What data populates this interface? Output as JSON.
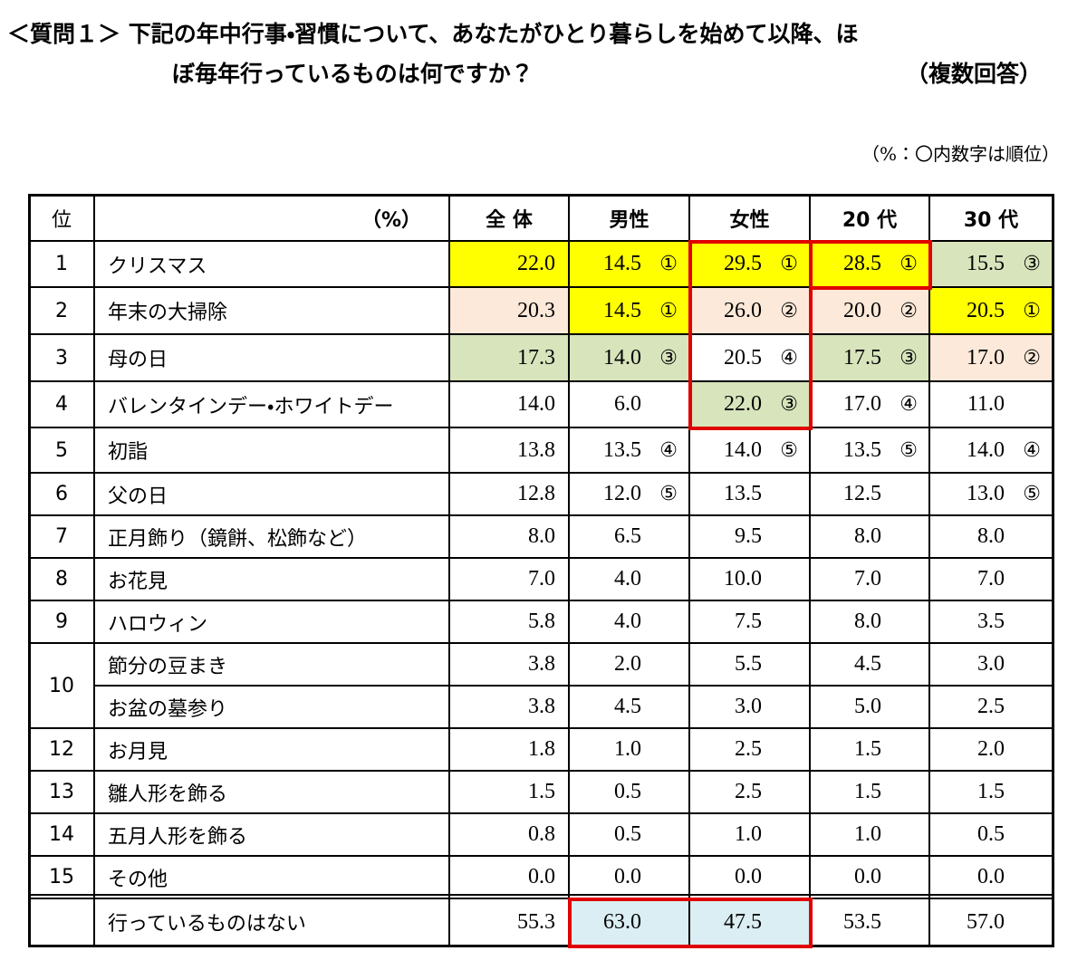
{
  "header": {
    "title_lines": [
      "＜質問１＞ 下記の年中行事・習慣について、あなたがひとり暮らしを始めて以降、ほ",
      "ぼ毎年行っているものは何ですか？"
    ],
    "answer_type": "（複数回答）",
    "note": "（%：〇内数字は順位）"
  },
  "table": {
    "header": {
      "rank": "位",
      "item": "（%）",
      "columns": [
        "全 体",
        "男性",
        "女性",
        "20 代",
        "30 代"
      ]
    },
    "rows": [
      {
        "rank": "1",
        "item": "クリスマス",
        "cells": [
          {
            "value": "22.0"
          },
          {
            "value": "14.5",
            "order": "①"
          },
          {
            "value": "29.5",
            "order": "①"
          },
          {
            "value": "28.5",
            "order": "①"
          },
          {
            "value": "15.5",
            "order": "③"
          }
        ]
      },
      {
        "rank": "2",
        "item": "年末の大掃除",
        "cells": [
          {
            "value": "20.3"
          },
          {
            "value": "14.5",
            "order": "①"
          },
          {
            "value": "26.0",
            "order": "②"
          },
          {
            "value": "20.0",
            "order": "②"
          },
          {
            "value": "20.5",
            "order": "①"
          }
        ]
      },
      {
        "rank": "3",
        "item": "母の日",
        "cells": [
          {
            "value": "17.3"
          },
          {
            "value": "14.0",
            "order": "③"
          },
          {
            "value": "20.5",
            "order": "④"
          },
          {
            "value": "17.5",
            "order": "③"
          },
          {
            "value": "17.0",
            "order": "②"
          }
        ]
      },
      {
        "rank": "4",
        "item": "バレンタインデー・ホワイトデー",
        "cells": [
          {
            "value": "14.0"
          },
          {
            "value": "6.0"
          },
          {
            "value": "22.0",
            "order": "③"
          },
          {
            "value": "17.0",
            "order": "④"
          },
          {
            "value": "11.0"
          }
        ]
      },
      {
        "rank": "5",
        "item": "初詣",
        "cells": [
          {
            "value": "13.8"
          },
          {
            "value": "13.5",
            "order": "④"
          },
          {
            "value": "14.0",
            "order": "⑤"
          },
          {
            "value": "13.5",
            "order": "⑤"
          },
          {
            "value": "14.0",
            "order": "④"
          }
        ]
      },
      {
        "rank": "6",
        "item": "父の日",
        "cells": [
          {
            "value": "12.8"
          },
          {
            "value": "12.0",
            "order": "⑤"
          },
          {
            "value": "13.5"
          },
          {
            "value": "12.5"
          },
          {
            "value": "13.0",
            "order": "⑤"
          }
        ]
      },
      {
        "rank": "7",
        "item": "正月飾り（鏡餅、松飾など）",
        "cells": [
          {
            "value": "8.0"
          },
          {
            "value": "6.5"
          },
          {
            "value": "9.5"
          },
          {
            "value": "8.0"
          },
          {
            "value": "8.0"
          }
        ]
      },
      {
        "rank": "8",
        "item": "お花見",
        "cells": [
          {
            "value": "7.0"
          },
          {
            "value": "4.0"
          },
          {
            "value": "10.0"
          },
          {
            "value": "7.0"
          },
          {
            "value": "7.0"
          }
        ]
      },
      {
        "rank": "9",
        "item": "ハロウィン",
        "cells": [
          {
            "value": "5.8"
          },
          {
            "value": "4.0"
          },
          {
            "value": "7.5"
          },
          {
            "value": "8.0"
          },
          {
            "value": "3.5"
          }
        ]
      },
      {
        "rank": "10",
        "item": "節分の豆まき",
        "cells": [
          {
            "value": "3.8"
          },
          {
            "value": "2.0"
          },
          {
            "value": "5.5"
          },
          {
            "value": "4.5"
          },
          {
            "value": "3.0"
          }
        ]
      },
      {
        "item": "お盆の墓参り",
        "cells": [
          {
            "value": "3.8"
          },
          {
            "value": "4.5"
          },
          {
            "value": "3.0"
          },
          {
            "value": "5.0"
          },
          {
            "value": "2.5"
          }
        ]
      },
      {
        "rank": "12",
        "item": "お月見",
        "cells": [
          {
            "value": "1.8"
          },
          {
            "value": "1.0"
          },
          {
            "value": "2.5"
          },
          {
            "value": "1.5"
          },
          {
            "value": "2.0"
          }
        ]
      },
      {
        "rank": "13",
        "item": "雛人形を飾る",
        "cells": [
          {
            "value": "1.5"
          },
          {
            "value": "0.5"
          },
          {
            "value": "2.5"
          },
          {
            "value": "1.5"
          },
          {
            "value": "1.5"
          }
        ]
      },
      {
        "rank": "14",
        "item": "五月人形を飾る",
        "cells": [
          {
            "value": "0.8"
          },
          {
            "value": "0.5"
          },
          {
            "value": "1.0"
          },
          {
            "value": "1.0"
          },
          {
            "value": "0.5"
          }
        ]
      },
      {
        "rank": "15",
        "item": "その他",
        "cells": [
          {
            "value": "0.0"
          },
          {
            "value": "0.0"
          },
          {
            "value": "0.0"
          },
          {
            "value": "0.0"
          },
          {
            "value": "0.0"
          }
        ]
      }
    ],
    "total": {
      "item": "行っているものはない",
      "cells": [
        {
          "value": "55.3"
        },
        {
          "value": "63.0"
        },
        {
          "value": "47.5"
        },
        {
          "value": "53.5"
        },
        {
          "value": "57.0"
        }
      ]
    }
  }
}
